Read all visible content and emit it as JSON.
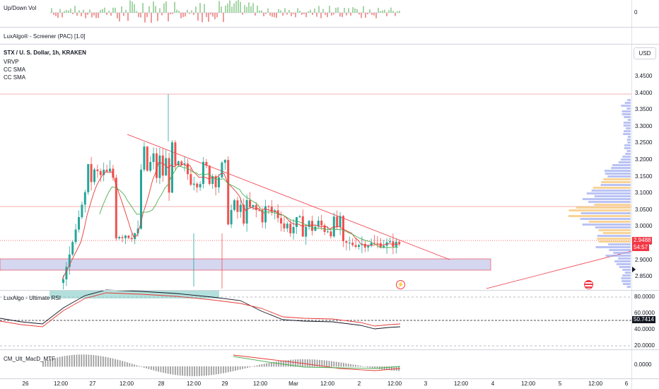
{
  "panes": {
    "updown": {
      "title": "Up/Down Vol",
      "zero_label": "0"
    },
    "screener": {
      "title": "LuxAlgo® - Screener (PAC) [1.0]"
    },
    "main": {
      "symbol_line": "STX / U. S. Dollar, 1h, KRAKEN",
      "indicators": [
        "VRVP",
        "CC SMA",
        "CC SMA"
      ],
      "currency_button": "USD",
      "price_ticks": [
        "3.4500",
        "3.4000",
        "3.3500",
        "3.3000",
        "3.2500",
        "3.2000",
        "3.1500",
        "3.1000",
        "3.0500",
        "3.0000",
        "2.9500",
        "2.9000",
        "2.8500"
      ],
      "last_price": "2.9488",
      "countdown": "54:57"
    },
    "rsi": {
      "title": "LuxAlgo - Ultimate RSI",
      "ticks": [
        "80.0000",
        "60.0000",
        "40.0000",
        "20.0000"
      ],
      "current_value": "50.7414"
    },
    "macd": {
      "title": "CM_Ult_MacD_MTF",
      "ticks": [
        "0.0000"
      ]
    }
  },
  "time_axis": [
    "26",
    "12:00",
    "27",
    "12:00",
    "28",
    "12:00",
    "29",
    "12:00",
    "Mar",
    "12:00",
    "2",
    "12:00",
    "3",
    "12:00",
    "4",
    "12:00",
    "5",
    "12:00",
    "6"
  ],
  "colors": {
    "up": "#26a69a",
    "down": "#ef5350",
    "volume_profile": "#9ca9f0",
    "poc": "#f5c26b",
    "zone": "#c5cae9",
    "trend": "#f23645",
    "sma_green": "#4caf50",
    "price_tag": "#f23645",
    "rsi_tag": "#131722"
  },
  "icons": {
    "flash": "lightning-badge-icon",
    "flag": "us-flag-badge-icon"
  }
}
